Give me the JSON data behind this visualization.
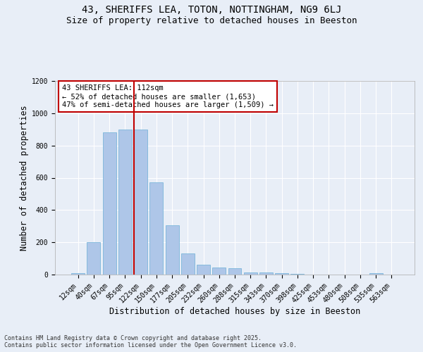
{
  "title": "43, SHERIFFS LEA, TOTON, NOTTINGHAM, NG9 6LJ",
  "subtitle": "Size of property relative to detached houses in Beeston",
  "xlabel": "Distribution of detached houses by size in Beeston",
  "ylabel": "Number of detached properties",
  "categories": [
    "12sqm",
    "40sqm",
    "67sqm",
    "95sqm",
    "122sqm",
    "150sqm",
    "177sqm",
    "205sqm",
    "232sqm",
    "260sqm",
    "288sqm",
    "315sqm",
    "343sqm",
    "370sqm",
    "398sqm",
    "425sqm",
    "453sqm",
    "480sqm",
    "508sqm",
    "535sqm",
    "563sqm"
  ],
  "values": [
    10,
    200,
    880,
    900,
    900,
    570,
    305,
    130,
    60,
    45,
    40,
    13,
    13,
    10,
    5,
    2,
    1,
    0,
    0,
    10,
    0
  ],
  "bar_color": "#aec6e8",
  "bar_edgecolor": "#6aaed6",
  "vline_x": 3.57,
  "vline_color": "#c00000",
  "annotation_text": "43 SHERIFFS LEA: 112sqm\n← 52% of detached houses are smaller (1,653)\n47% of semi-detached houses are larger (1,509) →",
  "annotation_box_color": "#ffffff",
  "annotation_box_edgecolor": "#c00000",
  "ylim": [
    0,
    1200
  ],
  "yticks": [
    0,
    200,
    400,
    600,
    800,
    1000,
    1200
  ],
  "background_color": "#e8eef7",
  "grid_color": "#ffffff",
  "footer": "Contains HM Land Registry data © Crown copyright and database right 2025.\nContains public sector information licensed under the Open Government Licence v3.0.",
  "title_fontsize": 10,
  "subtitle_fontsize": 9,
  "xlabel_fontsize": 8.5,
  "ylabel_fontsize": 8.5,
  "tick_fontsize": 7,
  "annotation_fontsize": 7.5,
  "footer_fontsize": 6
}
